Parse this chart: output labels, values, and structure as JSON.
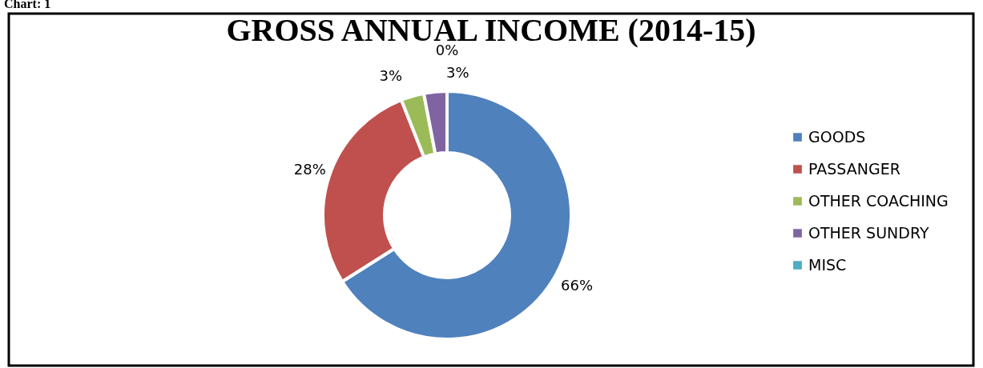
{
  "chart_data": {
    "type": "donut",
    "title": "GROSS ANNUAL INCOME (2014-15)",
    "annotations": [
      "Chart: 1"
    ],
    "categories": [
      "GOODS",
      "PASSANGER",
      "OTHER COACHING",
      "OTHER SUNDRY",
      "MISC"
    ],
    "values": [
      66,
      28,
      3,
      3,
      0
    ],
    "value_labels": [
      "66%",
      "28%",
      "3%",
      "3%",
      "0%"
    ],
    "colors": [
      "#4f81bd",
      "#c0504d",
      "#9bbb59",
      "#8064a2",
      "#4bacc6"
    ],
    "legend": "right"
  }
}
